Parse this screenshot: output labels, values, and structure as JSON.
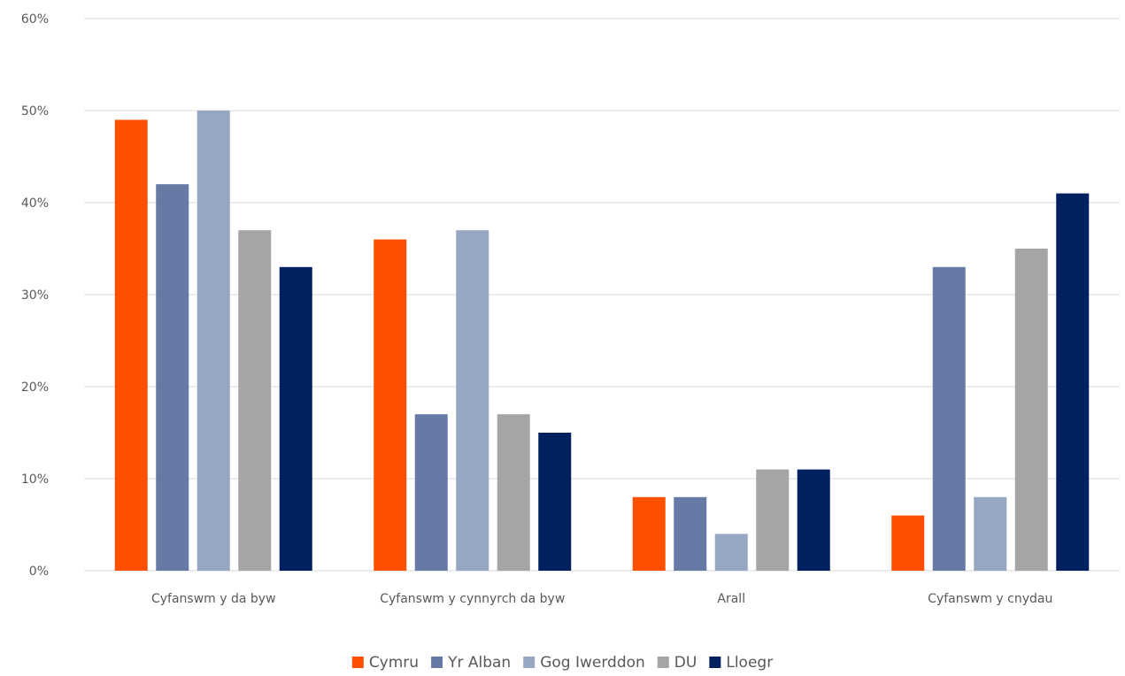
{
  "chart_data": {
    "type": "bar",
    "title": "",
    "xlabel": "",
    "ylabel": "",
    "categories": [
      "Cyfanswm y da byw",
      "Cyfanswm y cynnyrch da byw",
      "Arall",
      "Cyfanswm y cnydau"
    ],
    "series": [
      {
        "name": "Cymru",
        "color": "#ff5000",
        "values": [
          0.49,
          0.36,
          0.08,
          0.06
        ]
      },
      {
        "name": "Yr Alban",
        "color": "#6779a5",
        "values": [
          0.42,
          0.17,
          0.08,
          0.33
        ]
      },
      {
        "name": "Gog Iwerddon",
        "color": "#97a6c3",
        "values": [
          0.5,
          0.37,
          0.04,
          0.08
        ]
      },
      {
        "name": "DU",
        "color": "#a5a5a5",
        "values": [
          0.37,
          0.17,
          0.11,
          0.35
        ]
      },
      {
        "name": "Lloegr",
        "color": "#002060",
        "values": [
          0.33,
          0.15,
          0.11,
          0.41
        ]
      }
    ],
    "ylim": [
      0,
      0.6
    ],
    "yticks": [
      "0%",
      "10%",
      "20%",
      "30%",
      "40%",
      "50%",
      "60%"
    ],
    "grid": true,
    "legend_position": "bottom"
  }
}
